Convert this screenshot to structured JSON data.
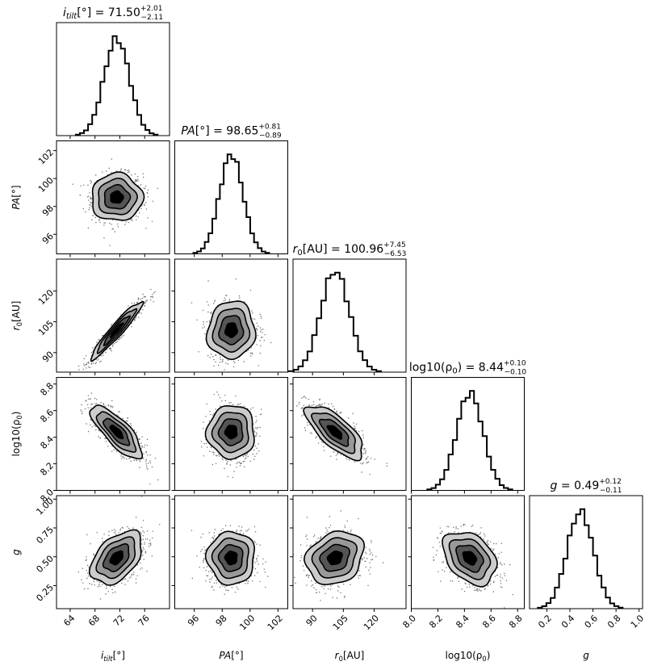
{
  "chart_data": {
    "type": "corner",
    "parameters": [
      {
        "key": "itilt",
        "label": "i_tilt[°]",
        "median": 71.5,
        "plus": 2.01,
        "minus": 2.11,
        "range": [
          61.8,
          80.0
        ],
        "ticks": [
          64,
          68,
          72,
          76
        ],
        "tick_labels": [
          "64",
          "68",
          "72",
          "76"
        ],
        "title": {
          "base": "i",
          "sub": "tilt",
          "unit": "[°]",
          "value": "71.50",
          "plus": "+2.01",
          "minus": "−2.11"
        }
      },
      {
        "key": "PA",
        "label": "PA[°]",
        "median": 98.65,
        "plus": 0.81,
        "minus": 0.89,
        "range": [
          94.6,
          102.7
        ],
        "ticks": [
          96,
          98,
          100,
          102
        ],
        "tick_labels": [
          "96",
          "98",
          "100",
          "102"
        ],
        "title": {
          "base": "PA",
          "sub": "",
          "unit": "[°]",
          "value": "98.65",
          "plus": "+0.81",
          "minus": "−0.89"
        }
      },
      {
        "key": "r0",
        "label": "r_0[AU]",
        "median": 100.96,
        "plus": 7.45,
        "minus": 6.53,
        "range": [
          80.5,
          135.5
        ],
        "ticks": [
          90,
          105,
          120
        ],
        "tick_labels": [
          "90",
          "105",
          "120"
        ],
        "title": {
          "base": "r",
          "sub": "0",
          "unit": "[AU]",
          "value": "100.96",
          "plus": "+7.45",
          "minus": "−6.53"
        }
      },
      {
        "key": "logrho",
        "label": "log10(ρ_0)",
        "median": 8.44,
        "plus": 0.1,
        "minus": 0.1,
        "range": [
          8.0,
          8.85
        ],
        "ticks": [
          8.0,
          8.2,
          8.4,
          8.6,
          8.8
        ],
        "tick_labels": [
          "8.0",
          "8.2",
          "8.4",
          "8.6",
          "8.8"
        ],
        "title": {
          "base": "log10(ρ",
          "sub": "0",
          "unit": ")",
          "value": "8.44",
          "plus": "+0.10",
          "minus": "−0.10"
        }
      },
      {
        "key": "g",
        "label": "g",
        "median": 0.49,
        "plus": 0.12,
        "minus": 0.11,
        "range": [
          0.05,
          1.03
        ],
        "ticks": [
          0.2,
          0.4,
          0.6,
          0.8,
          1.0
        ],
        "tick_labels": [
          "0.2",
          "0.4",
          "0.6",
          "0.8",
          "1.0"
        ],
        "y_ticks": [
          0.25,
          0.5,
          0.75,
          1.0
        ],
        "y_tick_labels": [
          "0.25",
          "0.50",
          "0.75",
          "1.00"
        ],
        "title": {
          "base": "g",
          "sub": "",
          "unit": "",
          "value": "0.49",
          "plus": "+0.12",
          "minus": "−0.11"
        }
      }
    ],
    "axis_labels": {
      "itilt": {
        "base": "i",
        "sub": "tilt",
        "unit": "[°]"
      },
      "PA": {
        "base": "PA",
        "sub": "",
        "unit": "[°]"
      },
      "r0": {
        "base": "r",
        "sub": "0",
        "unit": "[AU]"
      },
      "logrho": {
        "base": "log10(ρ",
        "sub": "0",
        "unit": ")"
      },
      "g": {
        "base": "g",
        "sub": "",
        "unit": ""
      }
    },
    "correlations": [
      {
        "pair": [
          "r0",
          "itilt"
        ],
        "rho": 0.95
      },
      {
        "pair": [
          "logrho",
          "itilt"
        ],
        "rho": -0.78
      },
      {
        "pair": [
          "logrho",
          "r0"
        ],
        "rho": -0.72
      },
      {
        "pair": [
          "g",
          "itilt"
        ],
        "rho": 0.45
      },
      {
        "pair": [
          "g",
          "logrho"
        ],
        "rho": -0.35
      },
      {
        "pair": [
          "g",
          "r0"
        ],
        "rho": 0.2
      },
      {
        "pair": [
          "r0",
          "PA"
        ],
        "rho": 0.05
      }
    ],
    "histogram_bins": 20,
    "contour_levels": [
      "0.5 sigma",
      "1 sigma",
      "1.5 sigma",
      "2 sigma"
    ],
    "contour_fills": [
      "#000000",
      "#555555",
      "#999999",
      "#cccccc"
    ],
    "point_color": "#000000"
  }
}
